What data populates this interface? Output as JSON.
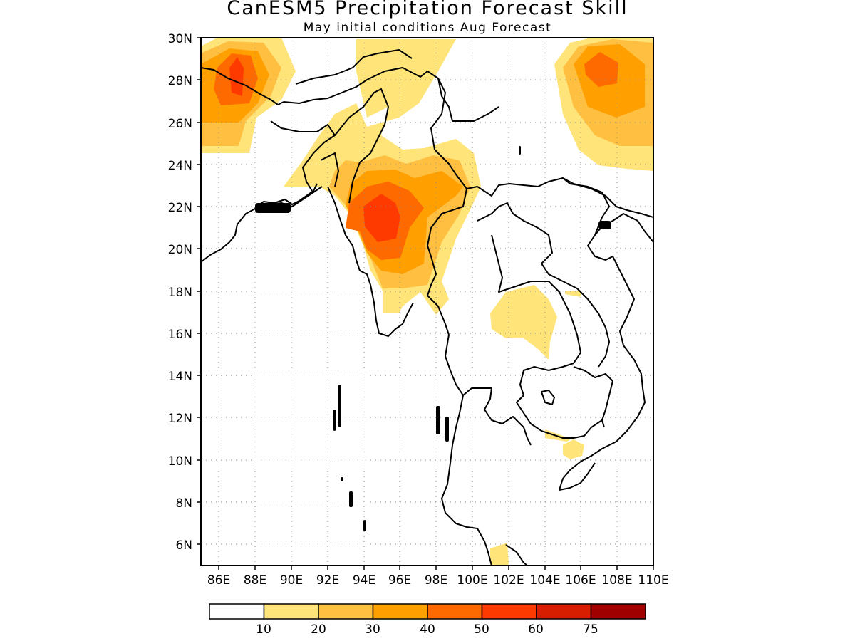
{
  "title": "CanESM5 Precipitation Forecast Skill",
  "subtitle": "May initial conditions  Aug Forecast",
  "axes": {
    "lat_labels": [
      "30N",
      "28N",
      "26N",
      "24N",
      "22N",
      "20N",
      "18N",
      "16N",
      "14N",
      "12N",
      "10N",
      "8N",
      "6N"
    ],
    "lon_labels": [
      "86E",
      "88E",
      "90E",
      "92E",
      "94E",
      "96E",
      "98E",
      "100E",
      "102E",
      "104E",
      "106E",
      "108E",
      "110E"
    ],
    "lat_range": [
      5,
      30
    ],
    "lon_range": [
      85,
      110
    ],
    "grid": "dotted"
  },
  "colorbar": {
    "colors": [
      "#ffffff",
      "#ffe47a",
      "#ffbf40",
      "#ff9f00",
      "#ff6a00",
      "#ff3a00",
      "#d81e00",
      "#a00000"
    ],
    "tick_labels": [
      "10",
      "20",
      "30",
      "40",
      "50",
      "60",
      "75"
    ]
  },
  "skill_regions": [
    {
      "name": "northwest-hotspot",
      "level_colors": [
        "#ffe47a",
        "#ffbf40",
        "#ff9f00",
        "#ff6a00",
        "#ff3a00"
      ]
    },
    {
      "name": "northeast-hotspot",
      "level_colors": [
        "#ffe47a",
        "#ffbf40",
        "#ff9f00",
        "#ff6a00"
      ]
    },
    {
      "name": "myanmar-hotspot",
      "level_colors": [
        "#ffe47a",
        "#ffbf40",
        "#ff9f00",
        "#ff6a00",
        "#ff3a00"
      ]
    },
    {
      "name": "thailand-patch",
      "level_colors": [
        "#ffe47a"
      ]
    },
    {
      "name": "cambodia-patch",
      "level_colors": [
        "#ffe47a"
      ]
    }
  ]
}
